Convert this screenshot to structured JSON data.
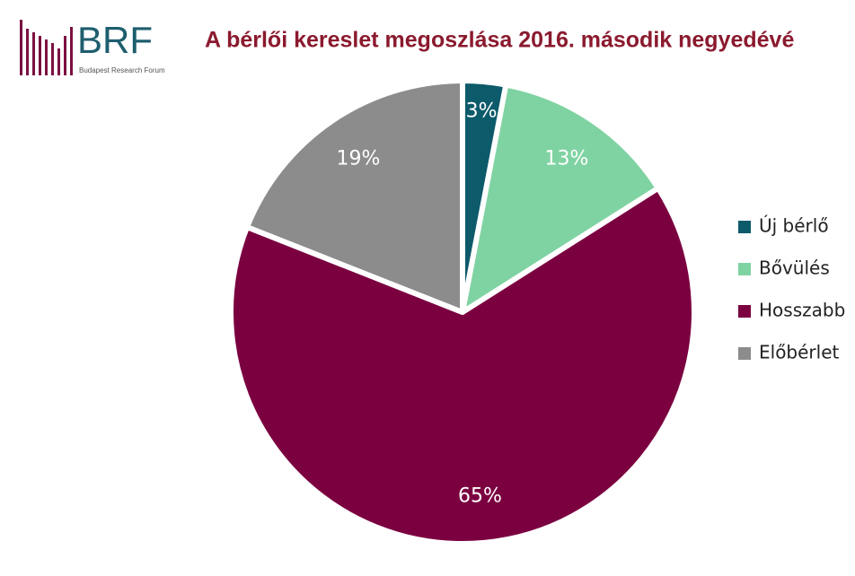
{
  "logo": {
    "text": "BRF",
    "subtitle": "Budapest Research Forum"
  },
  "chart_data": {
    "type": "pie",
    "title": "A bérlői kereslet megoszlása 2016. második negyedévé",
    "categories": [
      "Új bérlő",
      "Bővülés",
      "Hosszabb",
      "Előbérlet"
    ],
    "values": [
      3,
      13,
      65,
      19
    ],
    "value_labels": [
      "3%",
      "13%",
      "65%",
      "19%"
    ],
    "colors": [
      "#0d5a6b",
      "#7fd3a2",
      "#7b0040",
      "#8c8c8c"
    ],
    "legend": "right"
  }
}
